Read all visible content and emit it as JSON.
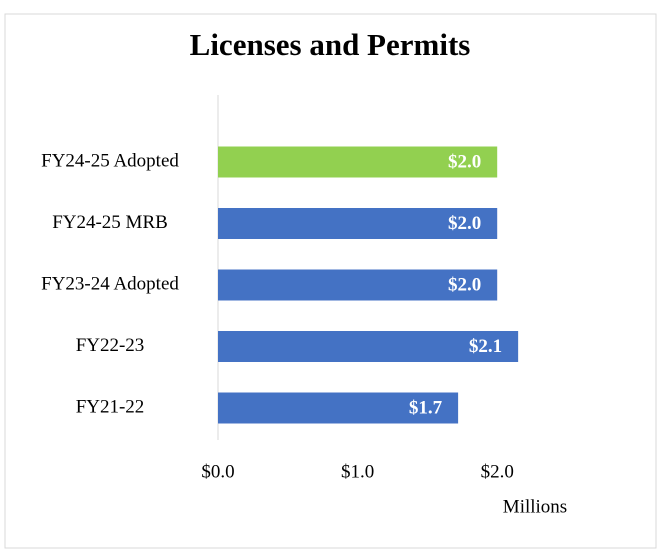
{
  "chart_data": {
    "type": "bar",
    "orientation": "horizontal",
    "title": "Licenses and Permits",
    "categories": [
      "FY24-25 Adopted",
      "FY24-25 MRB",
      "FY23-24 Adopted",
      "FY22-23",
      "FY21-22"
    ],
    "values": [
      2.0,
      2.0,
      2.0,
      2.15,
      1.72
    ],
    "value_labels": [
      "$2.0",
      "$2.0",
      "$2.0",
      "$2.1",
      "$1.7"
    ],
    "colors": [
      "#92d050",
      "#4472c4",
      "#4472c4",
      "#4472c4",
      "#4472c4"
    ],
    "xlim": [
      0,
      2.5
    ],
    "xticks": [
      {
        "value": 0,
        "label": "$0.0"
      },
      {
        "value": 1,
        "label": "$1.0"
      },
      {
        "value": 2,
        "label": "$2.0"
      }
    ],
    "xlabel": "Millions",
    "grid": false
  }
}
